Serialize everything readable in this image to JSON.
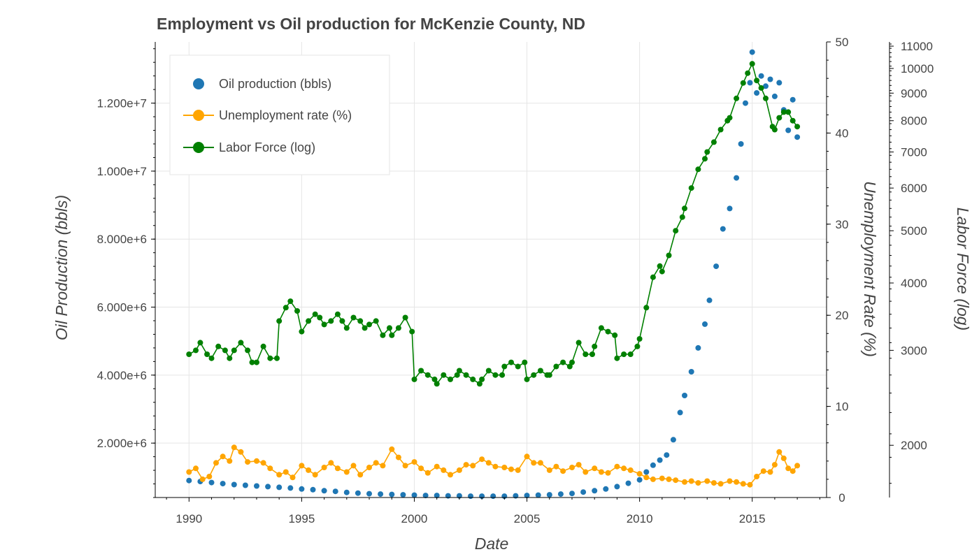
{
  "chart_data": {
    "type": "line",
    "title": "Employment vs Oil production for McKenzie County, ND",
    "xlabel": "Date",
    "xlim": [
      1988.5,
      2018.3
    ],
    "xticks": [
      1990,
      1995,
      2000,
      2005,
      2010,
      2015
    ],
    "grid": true,
    "legend_position": "top-left",
    "axes": {
      "left": {
        "label": "Oil Production (bbls)",
        "ylim": [
          400000,
          13800000
        ],
        "ticks": [
          2000000,
          4000000,
          6000000,
          8000000,
          10000000,
          12000000
        ],
        "tick_labels": [
          "2.000e+6",
          "4.000e+6",
          "6.000e+6",
          "8.000e+6",
          "1.000e+7",
          "1.200e+7"
        ]
      },
      "right": {
        "label": "Unemployment Rate (%)",
        "ylim": [
          0,
          50
        ],
        "ticks": [
          0,
          10,
          20,
          30,
          40,
          50
        ],
        "tick_labels": [
          "0",
          "10",
          "20",
          "30",
          "40",
          "50"
        ]
      },
      "far_right": {
        "label": "Labor Force (log)",
        "ylim": [
          1600,
          11200
        ],
        "scale": "log",
        "ticks": [
          2000,
          3000,
          4000,
          5000,
          6000,
          7000,
          8000,
          9000,
          10000,
          11000
        ],
        "tick_labels": [
          "2000",
          "3000",
          "4000",
          "5000",
          "6000",
          "7000",
          "8000",
          "9000",
          "10000",
          "11000"
        ]
      }
    },
    "series": [
      {
        "name": "Oil production (bbls)",
        "axis": "left",
        "style": "scatter",
        "color": "#1f77b4",
        "points": [
          [
            1990.0,
            900000
          ],
          [
            1990.5,
            870000
          ],
          [
            1991.0,
            840000
          ],
          [
            1991.5,
            810000
          ],
          [
            1992.0,
            780000
          ],
          [
            1992.5,
            760000
          ],
          [
            1993.0,
            740000
          ],
          [
            1993.5,
            720000
          ],
          [
            1994.0,
            700000
          ],
          [
            1994.5,
            680000
          ],
          [
            1995.0,
            650000
          ],
          [
            1995.5,
            630000
          ],
          [
            1996.0,
            600000
          ],
          [
            1996.5,
            580000
          ],
          [
            1997.0,
            550000
          ],
          [
            1997.5,
            530000
          ],
          [
            1998.0,
            510000
          ],
          [
            1998.5,
            500000
          ],
          [
            1999.0,
            490000
          ],
          [
            1999.5,
            480000
          ],
          [
            2000.0,
            470000
          ],
          [
            2000.5,
            460000
          ],
          [
            2001.0,
            460000
          ],
          [
            2001.5,
            450000
          ],
          [
            2002.0,
            450000
          ],
          [
            2002.5,
            440000
          ],
          [
            2003.0,
            440000
          ],
          [
            2003.5,
            440000
          ],
          [
            2004.0,
            440000
          ],
          [
            2004.5,
            450000
          ],
          [
            2005.0,
            460000
          ],
          [
            2005.5,
            470000
          ],
          [
            2006.0,
            480000
          ],
          [
            2006.5,
            500000
          ],
          [
            2007.0,
            520000
          ],
          [
            2007.5,
            560000
          ],
          [
            2008.0,
            600000
          ],
          [
            2008.5,
            650000
          ],
          [
            2009.0,
            720000
          ],
          [
            2009.5,
            820000
          ],
          [
            2010.0,
            920000
          ],
          [
            2010.3,
            1150000
          ],
          [
            2010.6,
            1350000
          ],
          [
            2010.9,
            1500000
          ],
          [
            2011.2,
            1650000
          ],
          [
            2011.5,
            2100000
          ],
          [
            2011.8,
            2900000
          ],
          [
            2012.0,
            3400000
          ],
          [
            2012.3,
            4100000
          ],
          [
            2012.6,
            4800000
          ],
          [
            2012.9,
            5500000
          ],
          [
            2013.1,
            6200000
          ],
          [
            2013.4,
            7200000
          ],
          [
            2013.7,
            8300000
          ],
          [
            2014.0,
            8900000
          ],
          [
            2014.3,
            9800000
          ],
          [
            2014.5,
            10800000
          ],
          [
            2014.7,
            12000000
          ],
          [
            2014.9,
            12600000
          ],
          [
            2015.0,
            13500000
          ],
          [
            2015.2,
            12300000
          ],
          [
            2015.4,
            12800000
          ],
          [
            2015.6,
            12500000
          ],
          [
            2015.8,
            12700000
          ],
          [
            2016.0,
            12200000
          ],
          [
            2016.2,
            12600000
          ],
          [
            2016.4,
            11800000
          ],
          [
            2016.6,
            11200000
          ],
          [
            2016.8,
            12100000
          ],
          [
            2017.0,
            11000000
          ]
        ]
      },
      {
        "name": "Unemployment rate (%)",
        "axis": "right",
        "style": "line-marker",
        "color": "#ffa500",
        "points": [
          [
            1990.0,
            2.8
          ],
          [
            1990.3,
            3.2
          ],
          [
            1990.6,
            2.0
          ],
          [
            1990.9,
            2.3
          ],
          [
            1991.2,
            3.8
          ],
          [
            1991.5,
            4.5
          ],
          [
            1991.8,
            4.0
          ],
          [
            1992.0,
            5.5
          ],
          [
            1992.3,
            5.0
          ],
          [
            1992.6,
            3.9
          ],
          [
            1993.0,
            4.0
          ],
          [
            1993.3,
            3.8
          ],
          [
            1993.6,
            3.2
          ],
          [
            1994.0,
            2.5
          ],
          [
            1994.3,
            2.8
          ],
          [
            1994.6,
            2.2
          ],
          [
            1995.0,
            3.5
          ],
          [
            1995.3,
            3.0
          ],
          [
            1995.6,
            2.5
          ],
          [
            1996.0,
            3.3
          ],
          [
            1996.3,
            3.8
          ],
          [
            1996.6,
            3.2
          ],
          [
            1997.0,
            2.8
          ],
          [
            1997.3,
            3.5
          ],
          [
            1997.6,
            2.5
          ],
          [
            1998.0,
            3.3
          ],
          [
            1998.3,
            3.8
          ],
          [
            1998.6,
            3.5
          ],
          [
            1999.0,
            5.3
          ],
          [
            1999.3,
            4.4
          ],
          [
            1999.6,
            3.5
          ],
          [
            2000.0,
            3.9
          ],
          [
            2000.3,
            3.2
          ],
          [
            2000.6,
            2.7
          ],
          [
            2001.0,
            3.4
          ],
          [
            2001.3,
            3.0
          ],
          [
            2001.6,
            2.5
          ],
          [
            2002.0,
            3.0
          ],
          [
            2002.3,
            3.6
          ],
          [
            2002.6,
            3.5
          ],
          [
            2003.0,
            4.2
          ],
          [
            2003.3,
            3.8
          ],
          [
            2003.6,
            3.4
          ],
          [
            2004.0,
            3.3
          ],
          [
            2004.3,
            3.1
          ],
          [
            2004.6,
            3.0
          ],
          [
            2005.0,
            4.5
          ],
          [
            2005.3,
            3.8
          ],
          [
            2005.6,
            3.8
          ],
          [
            2006.0,
            3.0
          ],
          [
            2006.3,
            3.4
          ],
          [
            2006.6,
            2.9
          ],
          [
            2007.0,
            3.3
          ],
          [
            2007.3,
            3.6
          ],
          [
            2007.6,
            2.8
          ],
          [
            2008.0,
            3.2
          ],
          [
            2008.3,
            2.8
          ],
          [
            2008.6,
            2.7
          ],
          [
            2009.0,
            3.4
          ],
          [
            2009.3,
            3.2
          ],
          [
            2009.6,
            3.0
          ],
          [
            2010.0,
            2.6
          ],
          [
            2010.3,
            2.2
          ],
          [
            2010.6,
            2.0
          ],
          [
            2011.0,
            2.1
          ],
          [
            2011.3,
            2.0
          ],
          [
            2011.6,
            1.9
          ],
          [
            2012.0,
            1.7
          ],
          [
            2012.3,
            1.8
          ],
          [
            2012.6,
            1.6
          ],
          [
            2013.0,
            1.8
          ],
          [
            2013.3,
            1.6
          ],
          [
            2013.6,
            1.5
          ],
          [
            2014.0,
            1.8
          ],
          [
            2014.3,
            1.7
          ],
          [
            2014.6,
            1.5
          ],
          [
            2014.9,
            1.4
          ],
          [
            2015.2,
            2.3
          ],
          [
            2015.5,
            2.9
          ],
          [
            2015.8,
            2.8
          ],
          [
            2016.0,
            3.6
          ],
          [
            2016.2,
            5.0
          ],
          [
            2016.4,
            4.3
          ],
          [
            2016.6,
            3.2
          ],
          [
            2016.8,
            2.9
          ],
          [
            2017.0,
            3.5
          ]
        ]
      },
      {
        "name": "Labor Force (log)",
        "axis": "far_right",
        "style": "line-marker",
        "color": "#008000",
        "points": [
          [
            1990.0,
            2950
          ],
          [
            1990.3,
            3000
          ],
          [
            1990.5,
            3100
          ],
          [
            1990.8,
            2950
          ],
          [
            1991.0,
            2900
          ],
          [
            1991.3,
            3050
          ],
          [
            1991.6,
            3000
          ],
          [
            1991.8,
            2900
          ],
          [
            1992.0,
            3000
          ],
          [
            1992.3,
            3100
          ],
          [
            1992.6,
            3000
          ],
          [
            1992.8,
            2850
          ],
          [
            1993.0,
            2850
          ],
          [
            1993.3,
            3050
          ],
          [
            1993.6,
            2900
          ],
          [
            1993.9,
            2900
          ],
          [
            1994.0,
            3400
          ],
          [
            1994.3,
            3600
          ],
          [
            1994.5,
            3700
          ],
          [
            1994.8,
            3550
          ],
          [
            1995.0,
            3250
          ],
          [
            1995.3,
            3400
          ],
          [
            1995.6,
            3500
          ],
          [
            1995.8,
            3450
          ],
          [
            1996.0,
            3350
          ],
          [
            1996.3,
            3400
          ],
          [
            1996.6,
            3500
          ],
          [
            1996.8,
            3400
          ],
          [
            1997.0,
            3300
          ],
          [
            1997.3,
            3450
          ],
          [
            1997.6,
            3400
          ],
          [
            1997.8,
            3300
          ],
          [
            1998.0,
            3350
          ],
          [
            1998.3,
            3400
          ],
          [
            1998.6,
            3200
          ],
          [
            1998.9,
            3300
          ],
          [
            1999.0,
            3200
          ],
          [
            1999.3,
            3300
          ],
          [
            1999.6,
            3450
          ],
          [
            1999.9,
            3250
          ],
          [
            2000.0,
            2650
          ],
          [
            2000.3,
            2750
          ],
          [
            2000.6,
            2700
          ],
          [
            2000.9,
            2650
          ],
          [
            2001.0,
            2600
          ],
          [
            2001.3,
            2700
          ],
          [
            2001.6,
            2650
          ],
          [
            2001.9,
            2700
          ],
          [
            2002.0,
            2750
          ],
          [
            2002.3,
            2700
          ],
          [
            2002.6,
            2650
          ],
          [
            2002.9,
            2600
          ],
          [
            2003.0,
            2650
          ],
          [
            2003.3,
            2750
          ],
          [
            2003.6,
            2700
          ],
          [
            2003.9,
            2700
          ],
          [
            2004.0,
            2800
          ],
          [
            2004.3,
            2850
          ],
          [
            2004.6,
            2800
          ],
          [
            2004.9,
            2850
          ],
          [
            2005.0,
            2650
          ],
          [
            2005.3,
            2700
          ],
          [
            2005.6,
            2750
          ],
          [
            2005.9,
            2700
          ],
          [
            2006.0,
            2700
          ],
          [
            2006.3,
            2800
          ],
          [
            2006.6,
            2850
          ],
          [
            2006.9,
            2800
          ],
          [
            2007.0,
            2850
          ],
          [
            2007.3,
            3100
          ],
          [
            2007.6,
            2950
          ],
          [
            2007.9,
            2950
          ],
          [
            2008.0,
            3050
          ],
          [
            2008.3,
            3300
          ],
          [
            2008.6,
            3250
          ],
          [
            2008.9,
            3200
          ],
          [
            2009.0,
            2900
          ],
          [
            2009.3,
            2950
          ],
          [
            2009.6,
            2950
          ],
          [
            2009.9,
            3050
          ],
          [
            2010.0,
            3150
          ],
          [
            2010.3,
            3600
          ],
          [
            2010.6,
            4100
          ],
          [
            2010.9,
            4300
          ],
          [
            2011.0,
            4200
          ],
          [
            2011.3,
            4500
          ],
          [
            2011.6,
            5000
          ],
          [
            2011.9,
            5300
          ],
          [
            2012.0,
            5500
          ],
          [
            2012.3,
            6000
          ],
          [
            2012.6,
            6500
          ],
          [
            2012.9,
            6800
          ],
          [
            2013.0,
            7000
          ],
          [
            2013.3,
            7300
          ],
          [
            2013.6,
            7700
          ],
          [
            2013.9,
            8000
          ],
          [
            2014.0,
            8100
          ],
          [
            2014.3,
            8800
          ],
          [
            2014.6,
            9400
          ],
          [
            2014.8,
            9800
          ],
          [
            2015.0,
            10200
          ],
          [
            2015.2,
            9500
          ],
          [
            2015.4,
            9200
          ],
          [
            2015.6,
            8800
          ],
          [
            2015.9,
            7800
          ],
          [
            2016.0,
            7700
          ],
          [
            2016.2,
            8100
          ],
          [
            2016.4,
            8300
          ],
          [
            2016.6,
            8300
          ],
          [
            2016.8,
            8000
          ],
          [
            2017.0,
            7800
          ]
        ]
      }
    ]
  }
}
